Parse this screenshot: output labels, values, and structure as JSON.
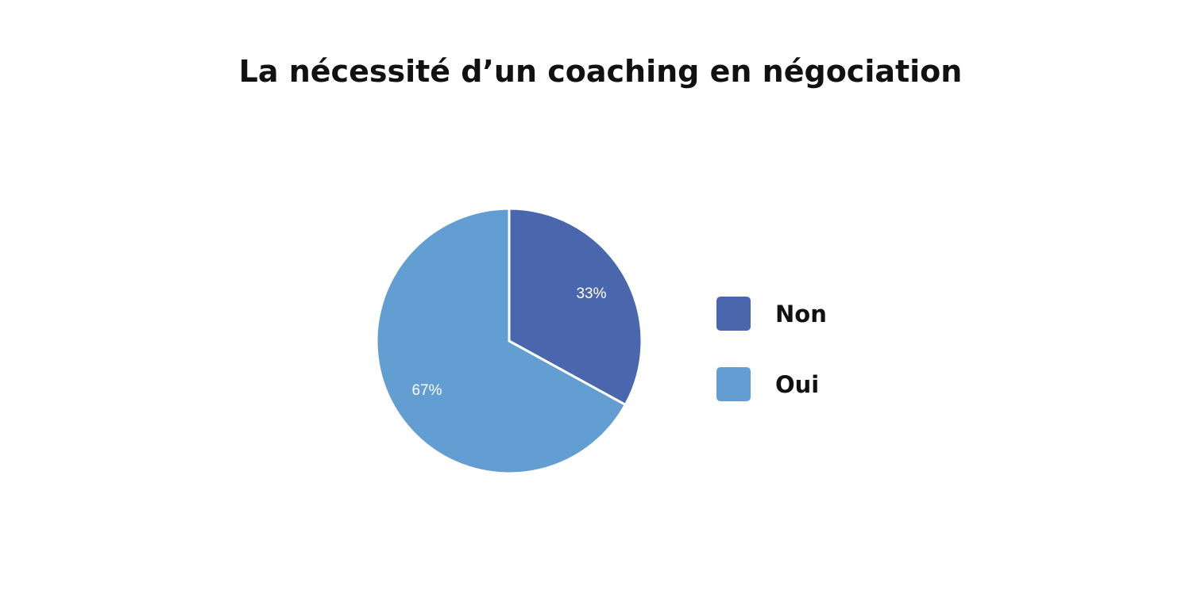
{
  "chart_data": {
    "type": "pie",
    "title": "La nécessité d’un coaching en négociation",
    "categories": [
      "Non",
      "Oui"
    ],
    "values": [
      33,
      67
    ],
    "labels": [
      "33%",
      "67%"
    ],
    "colors": [
      "#4a67ad",
      "#629ed1"
    ],
    "legend": "right"
  }
}
